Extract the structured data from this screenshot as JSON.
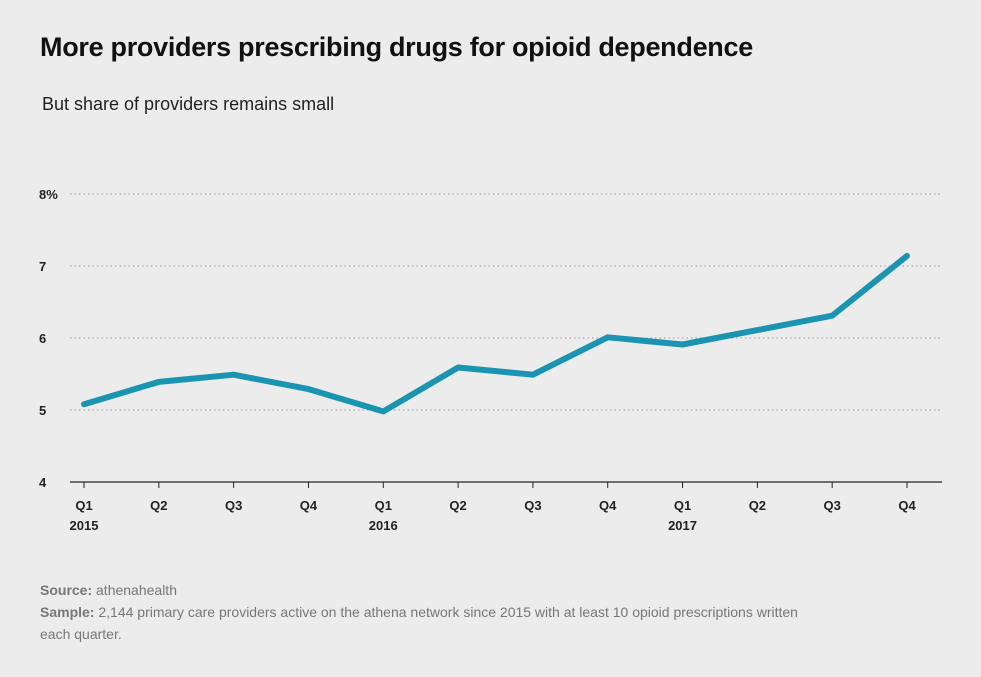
{
  "title": "More providers prescribing drugs for opioid dependence",
  "subtitle": "But share of providers remains small",
  "footer": {
    "source_label": "Source:",
    "source_text": "athenahealth",
    "sample_label": "Sample:",
    "sample_text": "2,144 primary care providers active on the athena network since 2015 with at least 10 opioid prescriptions written each quarter."
  },
  "colors": {
    "line": "#1a94b0",
    "background": "#ececec",
    "grid": "#999999"
  },
  "chart_data": {
    "type": "line",
    "title": "More providers prescribing drugs for opioid dependence",
    "subtitle": "But share of providers remains small",
    "xlabel": "",
    "ylabel": "",
    "categories": [
      "Q1",
      "Q2",
      "Q3",
      "Q4",
      "Q1",
      "Q2",
      "Q3",
      "Q4",
      "Q1",
      "Q2",
      "Q3",
      "Q4"
    ],
    "year_labels": [
      "2015",
      "",
      "",
      "",
      "2016",
      "",
      "",
      "",
      "2017",
      "",
      "",
      ""
    ],
    "series": [
      {
        "values": [
          5.08,
          5.39,
          5.49,
          5.29,
          4.98,
          5.59,
          5.49,
          6.01,
          5.91,
          6.11,
          6.31,
          7.14
        ]
      }
    ],
    "ylim": [
      4,
      8
    ],
    "yticks": [
      4,
      5,
      6,
      7,
      8
    ],
    "ytick_labels": [
      "4",
      "5",
      "6",
      "7",
      "8%"
    ],
    "grid": true
  }
}
